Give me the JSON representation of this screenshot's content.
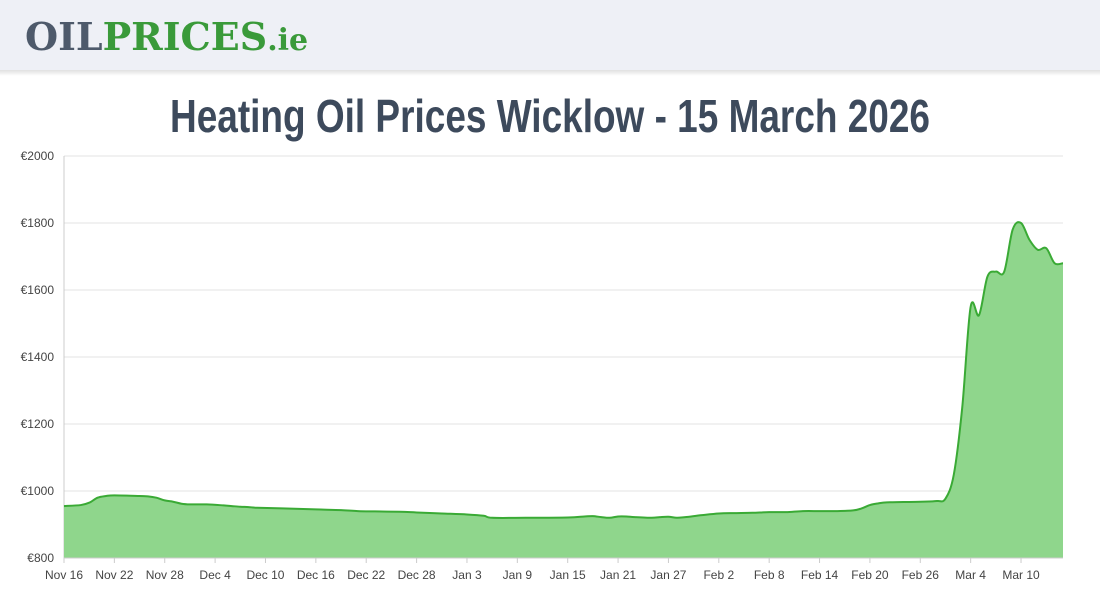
{
  "header": {
    "logo": [
      "OIL",
      "PRICES",
      ".ie"
    ]
  },
  "chart_data": {
    "type": "area",
    "title": "Heating Oil Prices Wicklow - 15 March 2026",
    "color": "#3aaa35",
    "fill": "#8fd68c",
    "grid": true,
    "x": [
      0,
      2,
      3,
      4,
      5,
      6,
      9,
      10,
      11,
      12,
      13,
      14,
      15,
      17,
      19,
      20,
      21,
      22,
      23,
      26,
      30,
      33,
      35,
      37,
      40,
      42,
      45,
      48,
      50,
      51,
      55,
      60,
      62,
      63,
      64,
      65,
      66,
      67,
      68,
      70,
      71,
      72,
      73,
      74,
      76,
      78,
      80,
      82,
      84,
      86,
      88,
      90,
      92,
      94,
      95,
      96,
      97,
      98,
      100,
      102,
      104,
      105,
      106,
      107,
      108,
      109,
      110,
      111,
      112,
      113,
      114,
      115,
      116,
      117,
      118,
      119
    ],
    "values": [
      955,
      958,
      965,
      980,
      985,
      987,
      985,
      984,
      980,
      972,
      968,
      962,
      960,
      960,
      957,
      955,
      953,
      952,
      950,
      948,
      945,
      943,
      940,
      939,
      938,
      936,
      933,
      930,
      926,
      920,
      920,
      921,
      924,
      925,
      922,
      920,
      924,
      924,
      922,
      920,
      922,
      923,
      920,
      922,
      928,
      933,
      934,
      935,
      937,
      937,
      940,
      940,
      940,
      942,
      948,
      958,
      963,
      966,
      967,
      968,
      970,
      977,
      1050,
      1250,
      1550,
      1525,
      1640,
      1655,
      1655,
      1780,
      1800,
      1750,
      1720,
      1725,
      1680,
      1680
    ],
    "xlim": [
      0,
      119
    ],
    "xticks": [
      {
        "value": 0,
        "label": "Nov 16"
      },
      {
        "value": 6,
        "label": "Nov 22"
      },
      {
        "value": 12,
        "label": "Nov 28"
      },
      {
        "value": 18,
        "label": "Dec 4"
      },
      {
        "value": 24,
        "label": "Dec 10"
      },
      {
        "value": 30,
        "label": "Dec 16"
      },
      {
        "value": 36,
        "label": "Dec 22"
      },
      {
        "value": 42,
        "label": "Dec 28"
      },
      {
        "value": 48,
        "label": "Jan 3"
      },
      {
        "value": 54,
        "label": "Jan 9"
      },
      {
        "value": 60,
        "label": "Jan 15"
      },
      {
        "value": 66,
        "label": "Jan 21"
      },
      {
        "value": 72,
        "label": "Jan 27"
      },
      {
        "value": 78,
        "label": "Feb 2"
      },
      {
        "value": 84,
        "label": "Feb 8"
      },
      {
        "value": 90,
        "label": "Feb 14"
      },
      {
        "value": 96,
        "label": "Feb 20"
      },
      {
        "value": 102,
        "label": "Feb 26"
      },
      {
        "value": 108,
        "label": "Mar 4"
      },
      {
        "value": 114,
        "label": "Mar 10"
      }
    ],
    "ylim": [
      800,
      2000
    ],
    "yticks": [
      {
        "value": 800,
        "label": "€800"
      },
      {
        "value": 1000,
        "label": "€1000"
      },
      {
        "value": 1200,
        "label": "€1200"
      },
      {
        "value": 1400,
        "label": "€1400"
      },
      {
        "value": 1600,
        "label": "€1600"
      },
      {
        "value": 1800,
        "label": "€1800"
      },
      {
        "value": 2000,
        "label": "€2000"
      }
    ]
  }
}
